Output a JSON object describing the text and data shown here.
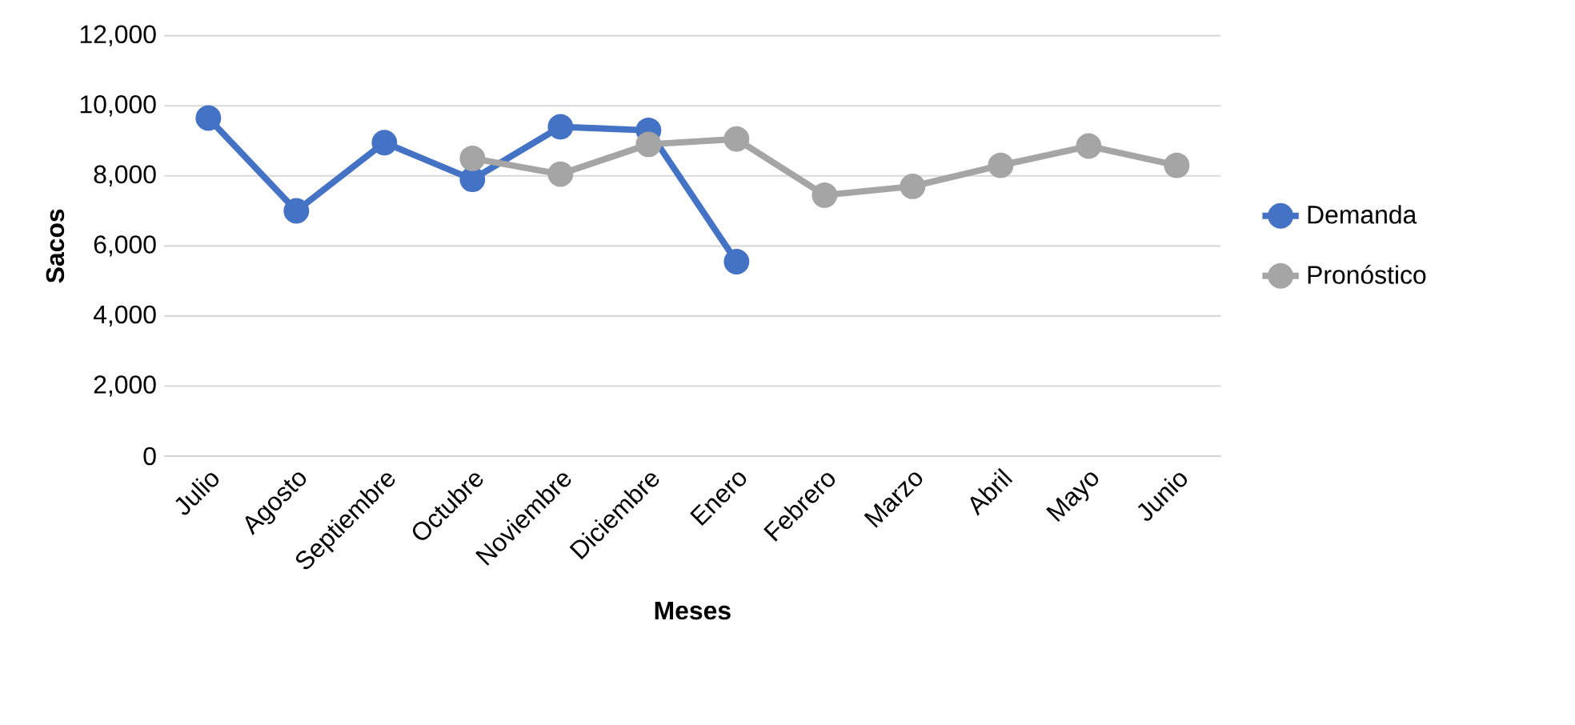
{
  "chart_data": {
    "type": "line",
    "xlabel": "Meses",
    "ylabel": "Sacos",
    "categories": [
      "Julio",
      "Agosto",
      "Septiembre",
      "Octubre",
      "Noviembre",
      "Diciembre",
      "Enero",
      "Febrero",
      "Marzo",
      "Abril",
      "Mayo",
      "Junio"
    ],
    "series": [
      {
        "name": "Demanda",
        "color": "#4472c4",
        "values": [
          9650,
          7000,
          8950,
          7900,
          9400,
          9300,
          5550,
          null,
          null,
          null,
          null,
          null
        ]
      },
      {
        "name": "Pronóstico",
        "color": "#a5a5a5",
        "values": [
          null,
          null,
          null,
          8500,
          8050,
          8900,
          9050,
          7450,
          7700,
          8300,
          8850,
          8300
        ]
      }
    ],
    "ylim": [
      0,
      12000
    ],
    "yticks": [
      {
        "value": 0,
        "label": "0"
      },
      {
        "value": 2000,
        "label": "2,000"
      },
      {
        "value": 4000,
        "label": "4,000"
      },
      {
        "value": 6000,
        "label": "6,000"
      },
      {
        "value": 8000,
        "label": "8,000"
      },
      {
        "value": 10000,
        "label": "10,000"
      },
      {
        "value": 12000,
        "label": "12,000"
      }
    ],
    "grid": "y",
    "legend": "right",
    "marker": "circle",
    "line_style": "solid"
  }
}
